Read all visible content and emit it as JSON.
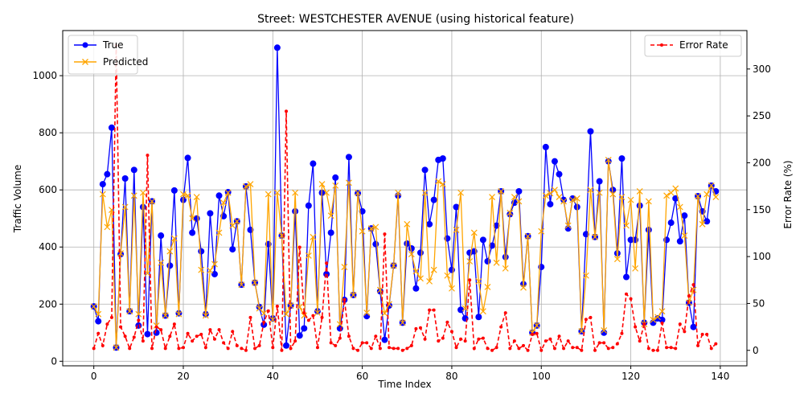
{
  "chart_data": {
    "type": "line",
    "title": "Street: WESTCHESTER AVENUE (using historical feature)",
    "xlabel": "Time Index",
    "ylabel": "Traffic Volume",
    "y2label": "Error Rate (%)",
    "xlim": [
      -6.95,
      145.95
    ],
    "ylim": [
      -16,
      1158
    ],
    "y2lim": [
      -16.5,
      341
    ],
    "x_ticks": [
      0,
      20,
      40,
      60,
      80,
      100,
      120,
      140
    ],
    "y_ticks": [
      0,
      200,
      400,
      600,
      800,
      1000
    ],
    "y2_ticks": [
      0,
      50,
      100,
      150,
      200,
      250,
      300
    ],
    "grid": true,
    "legend_left_placement": "upper-left",
    "legend_right_placement": "upper-right",
    "x": [
      0,
      1,
      2,
      3,
      4,
      5,
      6,
      7,
      8,
      9,
      10,
      11,
      12,
      13,
      14,
      15,
      16,
      17,
      18,
      19,
      20,
      21,
      22,
      23,
      24,
      25,
      26,
      27,
      28,
      29,
      30,
      31,
      32,
      33,
      34,
      35,
      36,
      37,
      38,
      39,
      40,
      41,
      42,
      43,
      44,
      45,
      46,
      47,
      48,
      49,
      50,
      51,
      52,
      53,
      54,
      55,
      56,
      57,
      58,
      59,
      60,
      61,
      62,
      63,
      64,
      65,
      66,
      67,
      68,
      69,
      70,
      71,
      72,
      73,
      74,
      75,
      76,
      77,
      78,
      79,
      80,
      81,
      82,
      83,
      84,
      85,
      86,
      87,
      88,
      89,
      90,
      91,
      92,
      93,
      94,
      95,
      96,
      97,
      98,
      99,
      100,
      101,
      102,
      103,
      104,
      105,
      106,
      107,
      108,
      109,
      110,
      111,
      112,
      113,
      114,
      115,
      116,
      117,
      118,
      119,
      120,
      121,
      122,
      123,
      124,
      125,
      126,
      127,
      128,
      129,
      130,
      131,
      132,
      133,
      134,
      135,
      136,
      137,
      138,
      139
    ],
    "series": [
      {
        "name": "True",
        "axis": "left",
        "color": "#0000ff",
        "marker": "circle",
        "values": [
          192,
          140,
          620,
          655,
          818,
          48,
          375,
          640,
          175,
          670,
          125,
          540,
          95,
          560,
          100,
          440,
          160,
          335,
          598,
          168,
          565,
          712,
          450,
          500,
          385,
          165,
          518,
          305,
          580,
          508,
          592,
          392,
          490,
          268,
          612,
          460,
          275,
          190,
          128,
          410,
          150,
          1098,
          440,
          55,
          195,
          525,
          90,
          115,
          545,
          692,
          175,
          590,
          305,
          450,
          643,
          115,
          215,
          715,
          232,
          588,
          525,
          158,
          465,
          410,
          245,
          75,
          195,
          335,
          580,
          135,
          412,
          395,
          255,
          380,
          670,
          480,
          565,
          705,
          710,
          430,
          320,
          540,
          180,
          150,
          380,
          385,
          155,
          425,
          350,
          405,
          475,
          595,
          365,
          515,
          555,
          595,
          270,
          438,
          100,
          125,
          330,
          750,
          550,
          700,
          655,
          565,
          465,
          570,
          540,
          105,
          445,
          805,
          435,
          630,
          100,
          700,
          600,
          378,
          710,
          295,
          425,
          425,
          545,
          135,
          460,
          135,
          150,
          145,
          425,
          485,
          570,
          420,
          510,
          205,
          120,
          578,
          525,
          490,
          615,
          595
        ]
      },
      {
        "name": "Predicted",
        "axis": "left",
        "color": "#ffa500",
        "marker": "x",
        "values": [
          192,
          165,
          585,
          470,
          530,
          48,
          378,
          540,
          175,
          580,
          165,
          590,
          308,
          560,
          125,
          345,
          160,
          385,
          430,
          165,
          585,
          580,
          500,
          575,
          320,
          160,
          318,
          340,
          450,
          555,
          590,
          475,
          490,
          268,
          612,
          620,
          275,
          185,
          168,
          585,
          145,
          590,
          440,
          165,
          195,
          590,
          190,
          160,
          370,
          435,
          170,
          620,
          590,
          510,
          615,
          130,
          330,
          625,
          232,
          590,
          455,
          170,
          465,
          470,
          250,
          168,
          200,
          335,
          590,
          135,
          480,
          375,
          315,
          290,
          590,
          280,
          320,
          630,
          620,
          300,
          255,
          460,
          590,
          185,
          350,
          450,
          280,
          175,
          260,
          575,
          345,
          595,
          325,
          520,
          575,
          560,
          258,
          438,
          100,
          125,
          455,
          580,
          588,
          600,
          575,
          560,
          475,
          565,
          570,
          105,
          300,
          600,
          435,
          590,
          108,
          705,
          585,
          358,
          575,
          475,
          565,
          325,
          595,
          130,
          560,
          145,
          155,
          175,
          580,
          590,
          605,
          540,
          440,
          205,
          250,
          578,
          480,
          585,
          615,
          575
        ]
      },
      {
        "name": "Error Rate",
        "axis": "right",
        "color": "#ff0000",
        "marker": "dot",
        "dashed": true,
        "values": [
          2,
          18,
          5,
          28,
          35,
          325,
          25,
          15,
          2,
          14,
          32,
          10,
          208,
          2,
          25,
          22,
          2,
          15,
          28,
          2,
          3,
          18,
          10,
          15,
          17,
          3,
          22,
          12,
          22,
          8,
          2,
          20,
          5,
          2,
          0,
          35,
          2,
          5,
          30,
          42,
          3,
          47,
          0,
          255,
          2,
          10,
          110,
          40,
          32,
          37,
          3,
          35,
          93,
          8,
          5,
          13,
          54,
          15,
          2,
          0,
          8,
          8,
          2,
          15,
          2,
          124,
          3,
          2,
          2,
          0,
          2,
          5,
          23,
          24,
          12,
          43,
          43,
          10,
          13,
          30,
          20,
          3,
          12,
          10,
          75,
          2,
          12,
          13,
          2,
          0,
          3,
          25,
          40,
          2,
          10,
          2,
          5,
          0,
          17,
          18,
          0,
          10,
          12,
          2,
          15,
          2,
          10,
          3,
          3,
          0,
          33,
          35,
          0,
          8,
          8,
          2,
          3,
          7,
          18,
          60,
          55,
          25,
          10,
          28,
          2,
          0,
          0,
          29,
          3,
          3,
          2,
          28,
          20,
          58,
          70,
          5,
          17,
          17,
          2,
          7
        ]
      }
    ]
  }
}
